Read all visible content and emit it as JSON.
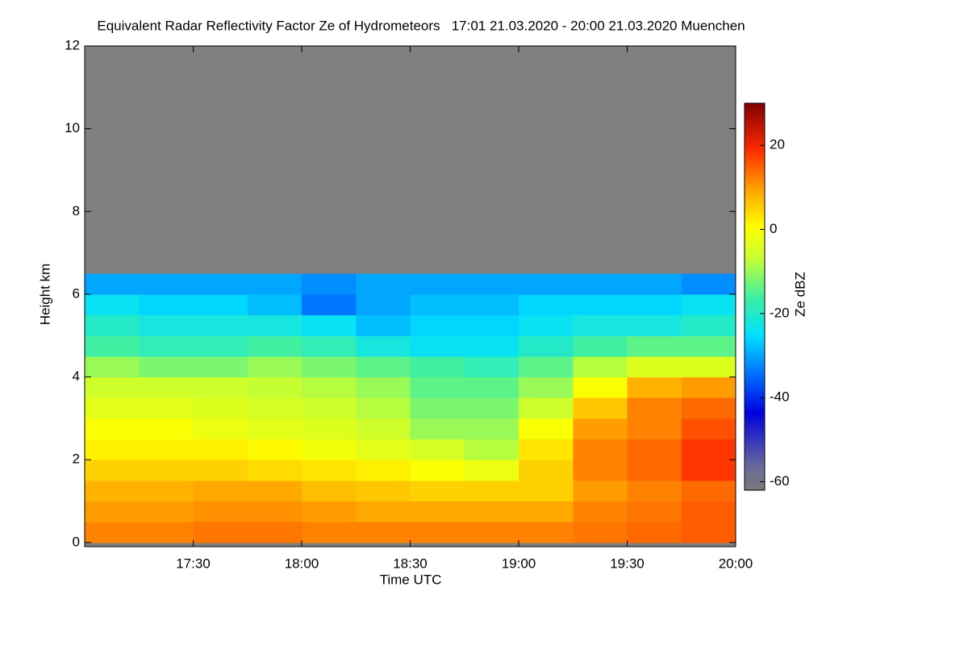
{
  "chart_data": {
    "type": "heatmap",
    "title": "Equivalent Radar Reflectivity Factor Ze of Hydrometeors   17:01 21.03.2020 - 20:00 21.03.2020 Muenchen",
    "x_label": "Time UTC",
    "y_label": "Height km",
    "colorbar_label": "Ze dBZ",
    "x": [
      17.125,
      17.375,
      17.625,
      17.875,
      18.125,
      18.375,
      18.625,
      18.875,
      19.125,
      19.375,
      19.625,
      19.875
    ],
    "y": [
      0.25,
      0.75,
      1.25,
      1.75,
      2.25,
      2.75,
      3.25,
      3.75,
      4.25,
      4.75,
      5.25,
      5.75,
      6.25,
      6.75
    ],
    "z": [
      [
        12,
        12,
        13,
        13,
        12,
        12,
        12,
        12,
        12,
        13,
        14,
        15
      ],
      [
        10,
        10,
        11,
        11,
        10,
        9,
        9,
        9,
        9,
        12,
        13,
        15
      ],
      [
        8,
        8,
        9,
        9,
        7,
        6,
        5,
        5,
        5,
        10,
        12,
        14
      ],
      [
        5,
        5,
        5,
        4,
        3,
        2,
        0,
        -2,
        5,
        12,
        14,
        18
      ],
      [
        2,
        2,
        2,
        1,
        -1,
        -3,
        -5,
        -8,
        3,
        12,
        14,
        18
      ],
      [
        0,
        0,
        -2,
        -3,
        -4,
        -6,
        -10,
        -10,
        0,
        10,
        12,
        16
      ],
      [
        -3,
        -3,
        -4,
        -5,
        -6,
        -8,
        -12,
        -12,
        -6,
        6,
        12,
        14
      ],
      [
        -6,
        -6,
        -6,
        -7,
        -8,
        -10,
        -14,
        -14,
        -10,
        0,
        8,
        10
      ],
      [
        -10,
        -12,
        -12,
        -10,
        -12,
        -14,
        -16,
        -18,
        -14,
        -8,
        -4,
        -4
      ],
      [
        -16,
        -18,
        -18,
        -16,
        -18,
        -22,
        -24,
        -24,
        -20,
        -16,
        -14,
        -14
      ],
      [
        -20,
        -22,
        -22,
        -22,
        -24,
        -28,
        -26,
        -26,
        -24,
        -22,
        -22,
        -20
      ],
      [
        -24,
        -26,
        -26,
        -28,
        -34,
        -30,
        -28,
        -28,
        -26,
        -26,
        -26,
        -24
      ],
      [
        -30,
        -30,
        -30,
        -30,
        -32,
        -30,
        -30,
        -30,
        -30,
        -30,
        -30,
        -32
      ],
      [
        null,
        null,
        null,
        null,
        null,
        null,
        null,
        null,
        null,
        null,
        null,
        null
      ]
    ],
    "xlim": [
      17,
      20
    ],
    "ylim": [
      -0.1,
      12
    ],
    "clim": [
      -62,
      30
    ],
    "xticks": [
      {
        "value": 17.5,
        "label": "17:30"
      },
      {
        "value": 18,
        "label": "18:00"
      },
      {
        "value": 18.5,
        "label": "18:30"
      },
      {
        "value": 19,
        "label": "19:00"
      },
      {
        "value": 19.5,
        "label": "19:30"
      },
      {
        "value": 20,
        "label": "20:00"
      }
    ],
    "yticks": [
      0,
      2,
      4,
      6,
      8,
      10,
      12
    ],
    "cticks": [
      -60,
      -40,
      -20,
      0,
      20
    ],
    "colormap": "rainbow",
    "missing_color": "#7f7f7f"
  }
}
